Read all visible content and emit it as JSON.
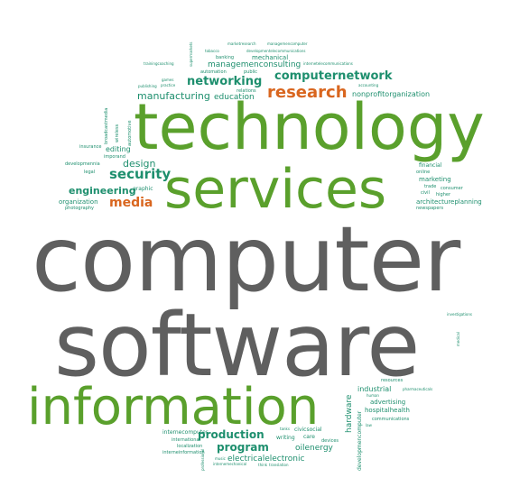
{
  "colors": {
    "grey": "#5f5f5f",
    "green": "#5aa02c",
    "teal": "#1e8f6e",
    "orange": "#d9661f"
  },
  "words": [
    {
      "id": "computer",
      "text": "computer",
      "color": "grey"
    },
    {
      "id": "software",
      "text": "software",
      "color": "grey"
    },
    {
      "id": "technology",
      "text": "technology",
      "color": "green"
    },
    {
      "id": "services",
      "text": "services",
      "color": "green"
    },
    {
      "id": "information",
      "text": "information",
      "color": "green"
    },
    {
      "id": "research",
      "text": "research",
      "color": "orange"
    },
    {
      "id": "computernetwork",
      "text": "computernetwork",
      "color": "teal"
    },
    {
      "id": "networking",
      "text": "networking",
      "color": "teal"
    },
    {
      "id": "security",
      "text": "security",
      "color": "teal"
    },
    {
      "id": "media",
      "text": "media",
      "color": "orange"
    },
    {
      "id": "engineering",
      "text": "engineering",
      "color": "teal"
    },
    {
      "id": "design",
      "text": "design",
      "color": "teal"
    },
    {
      "id": "manufacturing",
      "text": "manufacturing",
      "color": "teal"
    },
    {
      "id": "education",
      "text": "education",
      "color": "teal"
    },
    {
      "id": "managemenconsulting",
      "text": "managemenconsulting",
      "color": "teal"
    },
    {
      "id": "mechanical",
      "text": "mechanical",
      "color": "teal"
    },
    {
      "id": "nonprofitorganization",
      "text": "nonprofitorganization",
      "color": "teal"
    },
    {
      "id": "editing",
      "text": "editing",
      "color": "teal"
    },
    {
      "id": "graphic",
      "text": "graphic",
      "color": "teal"
    },
    {
      "id": "organization",
      "text": "organization",
      "color": "teal"
    },
    {
      "id": "photography",
      "text": "photography",
      "color": "teal"
    },
    {
      "id": "marketing",
      "text": "marketing",
      "color": "teal"
    },
    {
      "id": "financial",
      "text": "financial",
      "color": "teal"
    },
    {
      "id": "online",
      "text": "online",
      "color": "teal"
    },
    {
      "id": "trade",
      "text": "trade",
      "color": "teal"
    },
    {
      "id": "consumer",
      "text": "consumer",
      "color": "teal"
    },
    {
      "id": "civil",
      "text": "civil",
      "color": "teal"
    },
    {
      "id": "higher",
      "text": "higher",
      "color": "teal"
    },
    {
      "id": "architectureplanning",
      "text": "architectureplanning",
      "color": "teal"
    },
    {
      "id": "newspapers",
      "text": "newspapers",
      "color": "teal"
    },
    {
      "id": "production",
      "text": "production",
      "color": "teal"
    },
    {
      "id": "program",
      "text": "program",
      "color": "teal"
    },
    {
      "id": "electricalelectronic",
      "text": "electricalelectronic",
      "color": "teal"
    },
    {
      "id": "oilenergy",
      "text": "oilenergy",
      "color": "teal"
    },
    {
      "id": "industrial",
      "text": "industrial",
      "color": "teal"
    },
    {
      "id": "advertising",
      "text": "advertising",
      "color": "teal"
    },
    {
      "id": "hospitalhealth",
      "text": "hospitalhealth",
      "color": "teal"
    },
    {
      "id": "communications",
      "text": "communications",
      "color": "teal"
    },
    {
      "id": "hardware",
      "text": "hardware",
      "color": "teal"
    },
    {
      "id": "developmencomputer",
      "text": "developmencomputer",
      "color": "teal"
    },
    {
      "id": "writing",
      "text": "writing",
      "color": "teal"
    },
    {
      "id": "civicsocial",
      "text": "civicsocial",
      "color": "teal"
    },
    {
      "id": "care",
      "text": "care",
      "color": "teal"
    },
    {
      "id": "devices",
      "text": "devices",
      "color": "teal"
    },
    {
      "id": "internecomputer",
      "text": "internecomputer",
      "color": "teal"
    },
    {
      "id": "international",
      "text": "international",
      "color": "teal"
    },
    {
      "id": "localization",
      "text": "localization",
      "color": "teal"
    },
    {
      "id": "interneinformation",
      "text": "interneinformation",
      "color": "teal"
    },
    {
      "id": "music",
      "text": "music",
      "color": "teal"
    },
    {
      "id": "internemechanical",
      "text": "internemechanical",
      "color": "teal"
    },
    {
      "id": "think",
      "text": "think",
      "color": "teal"
    },
    {
      "id": "translation",
      "text": "translation",
      "color": "teal"
    },
    {
      "id": "professional",
      "text": "professional",
      "color": "teal"
    },
    {
      "id": "tanks",
      "text": "tanks",
      "color": "teal"
    },
    {
      "id": "resources",
      "text": "resources",
      "color": "teal"
    },
    {
      "id": "pharmaceuticals",
      "text": "pharmaceuticals",
      "color": "teal"
    },
    {
      "id": "human",
      "text": "human",
      "color": "teal"
    },
    {
      "id": "law",
      "text": "law",
      "color": "teal"
    },
    {
      "id": "investigations",
      "text": "investigations",
      "color": "teal"
    },
    {
      "id": "medical",
      "text": "medical",
      "color": "teal"
    },
    {
      "id": "insurance",
      "text": "insurance",
      "color": "teal"
    },
    {
      "id": "developmennia",
      "text": "developmennia",
      "color": "teal"
    },
    {
      "id": "legal",
      "text": "legal",
      "color": "teal"
    },
    {
      "id": "imporand",
      "text": "imporand",
      "color": "teal"
    },
    {
      "id": "broadcastmedia",
      "text": "broadcastmedia",
      "color": "teal"
    },
    {
      "id": "wireless",
      "text": "wireless",
      "color": "teal"
    },
    {
      "id": "automotive",
      "text": "automotive",
      "color": "teal"
    },
    {
      "id": "trainingcoaching",
      "text": "trainingcoaching",
      "color": "teal"
    },
    {
      "id": "tobacco",
      "text": "tobacco",
      "color": "teal"
    },
    {
      "id": "banking",
      "text": "banking",
      "color": "teal"
    },
    {
      "id": "marketresearch",
      "text": "marketresearch",
      "color": "teal"
    },
    {
      "id": "managemencomputer",
      "text": "managemencomputer",
      "color": "teal"
    },
    {
      "id": "developmentelecommunications",
      "text": "developmentelecommunications",
      "color": "teal"
    },
    {
      "id": "internetelecommunications",
      "text": "internetelecommunications",
      "color": "teal"
    },
    {
      "id": "automation",
      "text": "automation",
      "color": "teal"
    },
    {
      "id": "public",
      "text": "public",
      "color": "teal"
    },
    {
      "id": "relations",
      "text": "relations",
      "color": "teal"
    },
    {
      "id": "games",
      "text": "games",
      "color": "teal"
    },
    {
      "id": "practice",
      "text": "practice",
      "color": "teal"
    },
    {
      "id": "publishing",
      "text": "publishing",
      "color": "teal"
    },
    {
      "id": "accounting",
      "text": "accounting",
      "color": "teal"
    },
    {
      "id": "supermarkets",
      "text": "supermarkets",
      "color": "teal"
    }
  ]
}
